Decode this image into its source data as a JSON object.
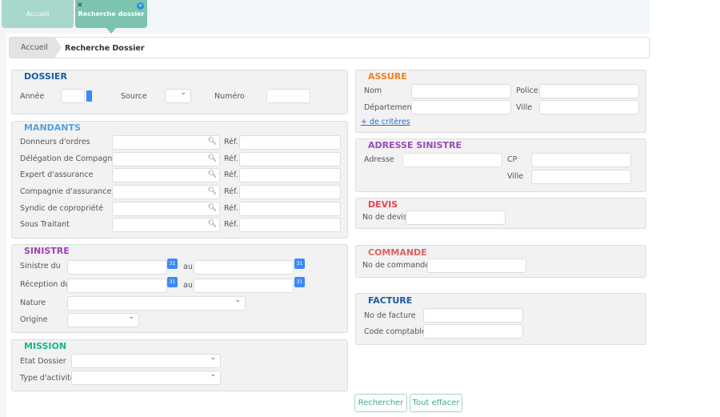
{
  "tabs": [
    {
      "label": "Accueil"
    },
    {
      "label": "Recherche dossier"
    }
  ],
  "breadcrumb": {
    "home": "Accueil",
    "current": "Recherche Dossier"
  },
  "dossier": {
    "title": "DOSSIER",
    "annee": "Année",
    "source": "Source",
    "numero": "Numéro"
  },
  "mandants": {
    "title": "MANDANTS",
    "ref": "Réf.",
    "rows": [
      "Donneurs d'ordres",
      "Délégation de Compagnie",
      "Expert d'assurance",
      "Compagnie d'assurances",
      "Syndic de copropriété",
      "Sous Traitant"
    ]
  },
  "sinistre": {
    "title": "SINISTRE",
    "sinistre_du": "Sinistre du",
    "reception_du": "Réception du",
    "au": "au",
    "nature": "Nature",
    "origine": "Origine",
    "calendar_label": "31"
  },
  "mission": {
    "title": "MISSION",
    "etat": "Etat Dossier",
    "type": "Type d'activité"
  },
  "assure": {
    "title": "ASSURE",
    "nom": "Nom",
    "police": "Police",
    "departement": "Département",
    "ville": "Ville",
    "more": "+ de critères"
  },
  "adresse": {
    "title": "ADRESSE SINISTRE",
    "adresse": "Adresse",
    "cp": "CP",
    "ville": "Ville"
  },
  "devis": {
    "title": "DEVIS",
    "no": "No de devis"
  },
  "commande": {
    "title": "COMMANDE",
    "no": "No de commande"
  },
  "facture": {
    "title": "FACTURE",
    "no": "No de facture",
    "code": "Code comptable"
  },
  "buttons": {
    "search": "Rechercher",
    "clear": "Tout effacer"
  },
  "colors": {
    "dossier": "#1a5aa8",
    "mandants": "#5aa0d8",
    "sinistre": "#a040b8",
    "mission": "#20b090",
    "assure": "#f08020",
    "adresse": "#9a4ab8",
    "devis": "#f04050",
    "commande": "#e06060",
    "facture": "#1a5aa8",
    "tab_active": "#7cc4b0",
    "tab_inactive": "#a8d8cb"
  }
}
